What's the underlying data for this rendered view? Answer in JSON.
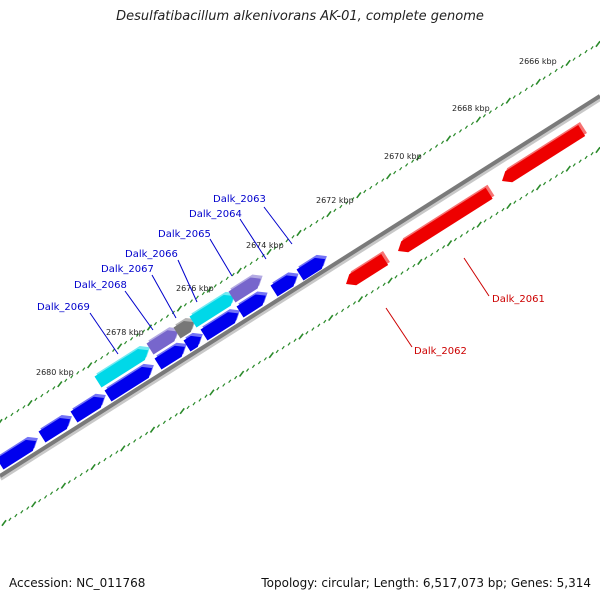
{
  "title": "Desulfatibacillum alkenivorans AK-01, complete genome",
  "footer": {
    "accession": "Accession: NC_011768",
    "summary": "Topology: circular; Length: 6,517,073 bp; Genes: 5,314"
  },
  "scale_labels": [
    "2666 kbp",
    "2668 kbp",
    "2670 kbp",
    "2672 kbp",
    "2674 kbp",
    "2676 kbp",
    "2678 kbp",
    "2680 kbp"
  ],
  "gene_labels": [
    {
      "name": "Dalk_2063",
      "color": "#0000cc"
    },
    {
      "name": "Dalk_2064",
      "color": "#0000cc"
    },
    {
      "name": "Dalk_2065",
      "color": "#0000cc"
    },
    {
      "name": "Dalk_2066",
      "color": "#0000cc"
    },
    {
      "name": "Dalk_2067",
      "color": "#0000cc"
    },
    {
      "name": "Dalk_2068",
      "color": "#0000cc"
    },
    {
      "name": "Dalk_2069",
      "color": "#0000cc"
    },
    {
      "name": "Dalk_2061",
      "color": "#cc0000"
    },
    {
      "name": "Dalk_2062",
      "color": "#cc0000"
    }
  ],
  "colors": {
    "forward_gene": "#0000ee",
    "reverse_gene": "#ee0000",
    "cyan_gene": "#00d8e8",
    "purple_gene": "#7766cc",
    "gray_gene": "#777777",
    "backbone": "#808080",
    "ticks": "#2a8a2a"
  }
}
